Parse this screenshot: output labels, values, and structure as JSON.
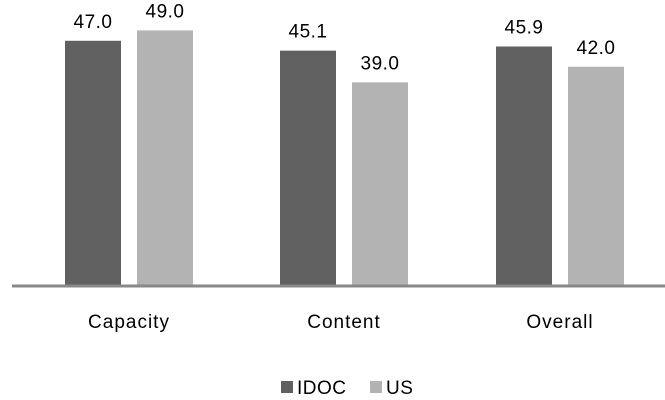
{
  "chart_data": {
    "type": "bar",
    "categories": [
      "Capacity",
      "Content",
      "Overall"
    ],
    "series": [
      {
        "name": "IDOC",
        "color": "#606060",
        "values": [
          47.0,
          45.1,
          45.9
        ],
        "labels": [
          "47.0",
          "45.1",
          "45.9"
        ]
      },
      {
        "name": "US",
        "color": "#b3b3b3",
        "values": [
          49.0,
          39.0,
          42.0
        ],
        "labels": [
          "49.0",
          "39.0",
          "42.0"
        ]
      }
    ],
    "ylim": [
      0,
      51
    ],
    "grid": false,
    "legend_position": "bottom",
    "axis_color": "#888888"
  }
}
